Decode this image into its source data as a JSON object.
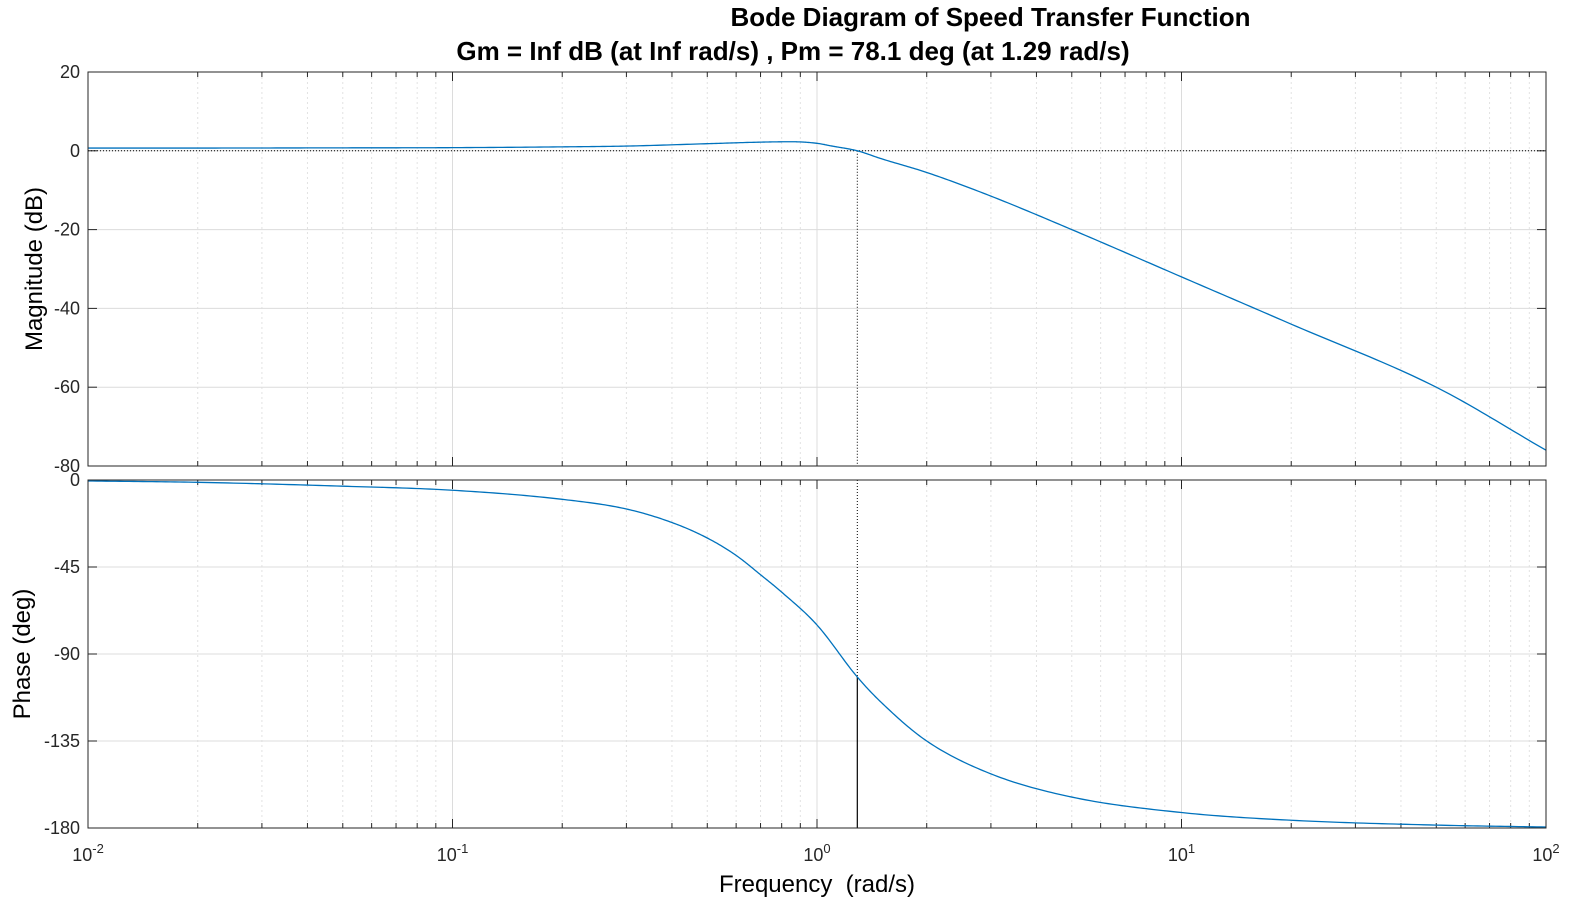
{
  "figure": {
    "title": "Bode Diagram of Speed Transfer Function",
    "margins_text": "Gm = Inf dB (at Inf rad/s) ,  Pm = 78.1 deg (at 1.29 rad/s)"
  },
  "chart_data": [
    {
      "type": "line",
      "panel": "magnitude",
      "ylabel": "Magnitude (dB)",
      "xlabel": "",
      "xscale": "log",
      "xlim": [
        0.01,
        100
      ],
      "ylim": [
        -80,
        20
      ],
      "yticks": [
        20,
        0,
        -20,
        -40,
        -60,
        -80
      ],
      "ytick_labels": [
        "20",
        "0",
        "-20",
        "-40",
        "-60",
        "-80"
      ],
      "grid": true,
      "line_color": "#0072BD",
      "reference_line": {
        "y": 0,
        "style": "dotted"
      },
      "crossover_marker": {
        "x": 1.29
      },
      "series": [
        {
          "x": [
            0.01,
            0.02,
            0.05,
            0.1,
            0.2,
            0.3,
            0.5,
            0.7,
            0.85,
            1.0,
            1.1,
            1.29,
            1.5,
            2,
            3,
            5,
            10,
            20,
            50,
            100
          ],
          "values": [
            0.7,
            0.7,
            0.75,
            0.8,
            1.0,
            1.2,
            1.8,
            2.2,
            2.3,
            1.9,
            1.2,
            0.0,
            -2.0,
            -5.5,
            -11.5,
            -20.0,
            -32.0,
            -44.0,
            -60.0,
            -76.0
          ]
        }
      ]
    },
    {
      "type": "line",
      "panel": "phase",
      "ylabel": "Phase (deg)",
      "xlabel": "Frequency  (rad/s)",
      "xscale": "log",
      "xlim": [
        0.01,
        100
      ],
      "ylim": [
        -180,
        0
      ],
      "yticks": [
        0,
        -45,
        -90,
        -135,
        -180
      ],
      "ytick_labels": [
        "0",
        "-45",
        "-90",
        "-135",
        "-180"
      ],
      "xticks": [
        0.01,
        0.1,
        1,
        10,
        100
      ],
      "xtick_labels": [
        {
          "base": "10",
          "exp": "-2"
        },
        {
          "base": "10",
          "exp": "-1"
        },
        {
          "base": "10",
          "exp": "0"
        },
        {
          "base": "10",
          "exp": "1"
        },
        {
          "base": "10",
          "exp": "2"
        }
      ],
      "grid": true,
      "line_color": "#0072BD",
      "reference_line": {
        "y": -180,
        "style": "dotted"
      },
      "phase_margin_marker": {
        "x": 1.29,
        "y_from": -180,
        "y_to": -101.9
      },
      "series": [
        {
          "x": [
            0.01,
            0.02,
            0.05,
            0.1,
            0.2,
            0.3,
            0.4,
            0.5,
            0.6,
            0.7,
            0.8,
            1.0,
            1.29,
            1.5,
            2,
            3,
            5,
            10,
            20,
            50,
            100
          ],
          "values": [
            -0.5,
            -1.2,
            -3.2,
            -5.3,
            -10,
            -15,
            -22,
            -30,
            -39,
            -49,
            -58,
            -75,
            -101.9,
            -115,
            -135,
            -152,
            -164,
            -172,
            -176,
            -178.5,
            -179.5
          ]
        }
      ]
    }
  ]
}
